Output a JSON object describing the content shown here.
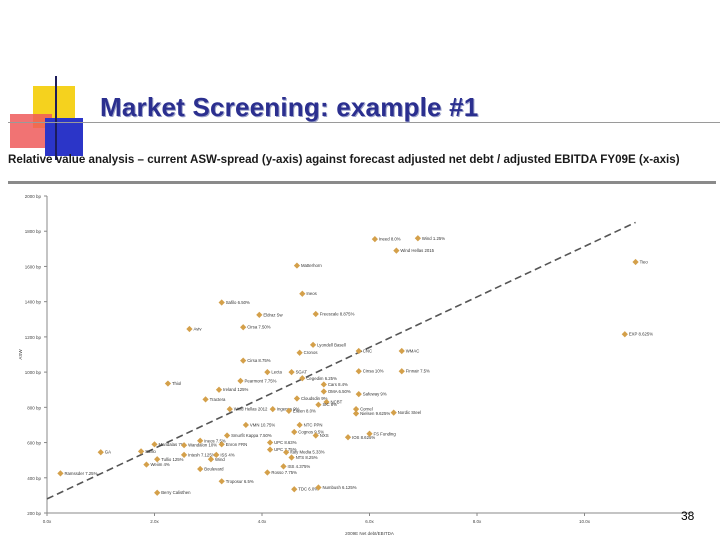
{
  "slide": {
    "title": "Market Screening: example #1",
    "subtitle": "Relative value analysis – current ASW-spread (y-axis) against forecast adjusted net debt / adjusted EBITDA FY09E (x-axis)",
    "page_number": "38"
  },
  "colors": {
    "title": "#2b2f8f",
    "marker": "#d4a04a",
    "deco_yellow": "#f5d21e",
    "deco_red": "#e83a3a",
    "deco_blue": "#2b35c8"
  },
  "chart_data": {
    "type": "scatter",
    "title": "Relative value analysis – current ASW-spread (y-axis) against forecast adjusted net debt / adjusted EBITDA FY09E (x-axis)",
    "xlabel": "2009E Net debt/EBITDA",
    "ylabel": "ASW",
    "xlim": [
      0,
      12
    ],
    "ylim": [
      200,
      2000
    ],
    "x_ticks": [
      0,
      2,
      4,
      6,
      8,
      10
    ],
    "x_tick_labels": [
      "0.0x",
      "2.0x",
      "4.0x",
      "6.0x",
      "8.0x",
      "10.0x"
    ],
    "y_ticks": [
      200,
      400,
      600,
      800,
      1000,
      1200,
      1400,
      1600,
      1800,
      2000
    ],
    "y_tick_labels": [
      "200 bp",
      "400 bp",
      "600 bp",
      "800 bp",
      "1000 bp",
      "1200 bp",
      "1400 bp",
      "1600 bp",
      "1800 bp",
      "2000 bp"
    ],
    "grid": false,
    "trend_line": {
      "style": "dashed",
      "x": [
        0,
        10.95
      ],
      "y": [
        280,
        1850
      ]
    },
    "series": [
      {
        "points": [
          {
            "x": 6.1,
            "y": 1755,
            "label": "Ineed 8.0%"
          },
          {
            "x": 6.9,
            "y": 1760,
            "label": "Wind 1.25%"
          },
          {
            "x": 6.5,
            "y": 1690,
            "label": "Wind Hellas 2015"
          },
          {
            "x": 4.65,
            "y": 1605,
            "label": "Matterhorn"
          },
          {
            "x": 10.95,
            "y": 1625,
            "label": "Tieo"
          },
          {
            "x": 4.75,
            "y": 1445,
            "label": "Ineos"
          },
          {
            "x": 3.25,
            "y": 1395,
            "label": "Safilo 6.50%"
          },
          {
            "x": 3.95,
            "y": 1325,
            "label": "Eldraz Sw"
          },
          {
            "x": 5.0,
            "y": 1330,
            "label": "Freescale 8.875%"
          },
          {
            "x": 2.65,
            "y": 1245,
            "label": "Aviv"
          },
          {
            "x": 3.65,
            "y": 1255,
            "label": "Cirsa 7.50%"
          },
          {
            "x": 10.75,
            "y": 1215,
            "label": "EXP 8.625%"
          },
          {
            "x": 4.95,
            "y": 1155,
            "label": "Lyondell Basell"
          },
          {
            "x": 4.7,
            "y": 1110,
            "label": "Cronos"
          },
          {
            "x": 5.8,
            "y": 1120,
            "label": "CNC"
          },
          {
            "x": 6.6,
            "y": 1120,
            "label": "WMAC"
          },
          {
            "x": 3.65,
            "y": 1065,
            "label": "Cirsa 8.75%"
          },
          {
            "x": 4.1,
            "y": 1000,
            "label": "Lecta"
          },
          {
            "x": 4.55,
            "y": 1000,
            "label": "SGAT"
          },
          {
            "x": 5.8,
            "y": 1005,
            "label": "Cinsa 10%"
          },
          {
            "x": 6.6,
            "y": 1005,
            "label": "Finnair 7.5%"
          },
          {
            "x": 3.6,
            "y": 950,
            "label": "Pearmont 7.75%"
          },
          {
            "x": 4.75,
            "y": 965,
            "label": "Cegedim 6.25%"
          },
          {
            "x": 5.15,
            "y": 930,
            "label": "Cars 8.4%"
          },
          {
            "x": 2.25,
            "y": 935,
            "label": "Thiol"
          },
          {
            "x": 3.2,
            "y": 900,
            "label": "Ireland 125%"
          },
          {
            "x": 5.15,
            "y": 890,
            "label": "OMA 6.50%"
          },
          {
            "x": 5.8,
            "y": 875,
            "label": "Safeway 9%"
          },
          {
            "x": 2.95,
            "y": 845,
            "label": "Tractera"
          },
          {
            "x": 4.65,
            "y": 850,
            "label": "Cloudsdin 9%"
          },
          {
            "x": 5.2,
            "y": 830,
            "label": "NCBT"
          },
          {
            "x": 5.05,
            "y": 815,
            "label": "SIC 8%"
          },
          {
            "x": 3.4,
            "y": 790,
            "label": "Wind Hellas 2012"
          },
          {
            "x": 4.2,
            "y": 790,
            "label": "Ingenus 9%"
          },
          {
            "x": 4.5,
            "y": 780,
            "label": "Eileen 8.0%"
          },
          {
            "x": 5.75,
            "y": 790,
            "label": "Cornel"
          },
          {
            "x": 5.75,
            "y": 765,
            "label": "Nielsen 9.625%"
          },
          {
            "x": 6.45,
            "y": 770,
            "label": "Nordic Steel"
          },
          {
            "x": 3.7,
            "y": 700,
            "label": "VMN 10.75%"
          },
          {
            "x": 4.7,
            "y": 700,
            "label": "NTC PPN"
          },
          {
            "x": 4.6,
            "y": 660,
            "label": "Cognos 9.5%"
          },
          {
            "x": 3.35,
            "y": 640,
            "label": "Smurfit Kappa 7.50%"
          },
          {
            "x": 5.0,
            "y": 640,
            "label": "NXS"
          },
          {
            "x": 5.6,
            "y": 630,
            "label": "IOS 8.625%"
          },
          {
            "x": 6.0,
            "y": 650,
            "label": "FS Funding"
          },
          {
            "x": 2.85,
            "y": 610,
            "label": "Ineos 7.5%"
          },
          {
            "x": 3.25,
            "y": 590,
            "label": "Enron FRN"
          },
          {
            "x": 4.15,
            "y": 600,
            "label": "UPC 8.63%"
          },
          {
            "x": 2.0,
            "y": 590,
            "label": "Mandalas 7%"
          },
          {
            "x": 2.55,
            "y": 585,
            "label": "Wandalon 10%"
          },
          {
            "x": 1.75,
            "y": 550,
            "label": "Safilo"
          },
          {
            "x": 1.0,
            "y": 545,
            "label": "GA"
          },
          {
            "x": 4.15,
            "y": 560,
            "label": "UPC 7.75%"
          },
          {
            "x": 4.45,
            "y": 545,
            "label": "Itaty Media 5.33%"
          },
          {
            "x": 2.55,
            "y": 530,
            "label": "Intesh 7.125%"
          },
          {
            "x": 3.15,
            "y": 530,
            "label": "ISS 4%"
          },
          {
            "x": 4.55,
            "y": 515,
            "label": "NTS 8.25%"
          },
          {
            "x": 2.05,
            "y": 505,
            "label": "Tullio 125%"
          },
          {
            "x": 3.05,
            "y": 505,
            "label": "Wind"
          },
          {
            "x": 1.85,
            "y": 475,
            "label": "Weiim 4%"
          },
          {
            "x": 4.4,
            "y": 465,
            "label": "ISS 4.375%"
          },
          {
            "x": 2.85,
            "y": 450,
            "label": "Boulevard"
          },
          {
            "x": 4.1,
            "y": 430,
            "label": "Rosso 7.75%"
          },
          {
            "x": 0.25,
            "y": 425,
            "label": "Ramssder 7.25%"
          },
          {
            "x": 3.25,
            "y": 380,
            "label": "Troposur 6.5%"
          },
          {
            "x": 4.6,
            "y": 335,
            "label": "TDC 6.0%"
          },
          {
            "x": 5.05,
            "y": 345,
            "label": "Numbush 6.125%"
          },
          {
            "x": 2.05,
            "y": 315,
            "label": "Berry Calisthen"
          }
        ]
      }
    ]
  }
}
